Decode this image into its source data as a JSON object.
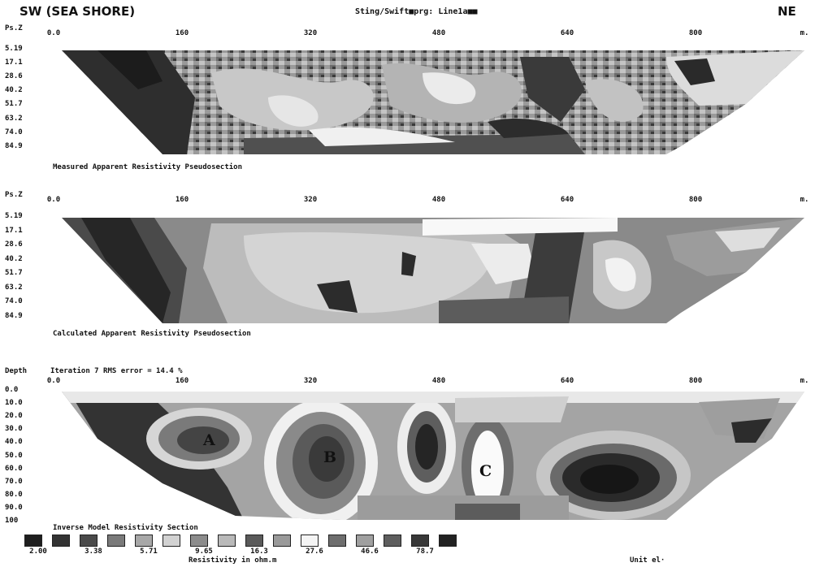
{
  "header": {
    "left": "SW (SEA SHORE)",
    "center": "Sting/Swift■prg: Line1a■■",
    "right": "NE"
  },
  "x_ticks": [
    "0.0",
    "160",
    "320",
    "480",
    "640",
    "800"
  ],
  "x_unit": "m.",
  "panels": [
    {
      "axis_label": "Ps.Z",
      "y_ticks": [
        "5.19",
        "17.1",
        "28.6",
        "40.2",
        "51.7",
        "63.2",
        "74.0",
        "84.9"
      ],
      "title": "Measured Apparent Resistivity Pseudosection"
    },
    {
      "axis_label": "Ps.Z",
      "y_ticks": [
        "5.19",
        "17.1",
        "28.6",
        "40.2",
        "51.7",
        "63.2",
        "74.0",
        "84.9"
      ],
      "title": "Calculated Apparent Resistivity Pseudosection"
    },
    {
      "axis_label": "Depth",
      "subtitle": "Iteration 7 RMS error = 14.4 %",
      "y_ticks": [
        "0.0",
        "10.0",
        "20.0",
        "30.0",
        "40.0",
        "50.0",
        "60.0",
        "70.0",
        "80.0",
        "90.0",
        "100"
      ],
      "title": "Inverse Model Resistivity Section"
    }
  ],
  "annotations": [
    "A",
    "B",
    "C"
  ],
  "legend": {
    "values": [
      "2.00",
      "3.38",
      "5.71",
      "9.65",
      "16.3",
      "27.6",
      "46.6",
      "78.7"
    ],
    "title": "Resistivity in ohm.m",
    "colors": [
      "#1e1e1e",
      "#333333",
      "#4a4a4a",
      "#7a7a7a",
      "#a8a8a8",
      "#d2d2d2",
      "#8c8c8c",
      "#b9b9b9",
      "#5a5a5a",
      "#9a9a9a",
      "#f4f4f4",
      "#6e6e6e",
      "#a0a0a0",
      "#5e5e5e",
      "#383838",
      "#222222"
    ]
  },
  "footer": {
    "unit": "Unit el·"
  }
}
